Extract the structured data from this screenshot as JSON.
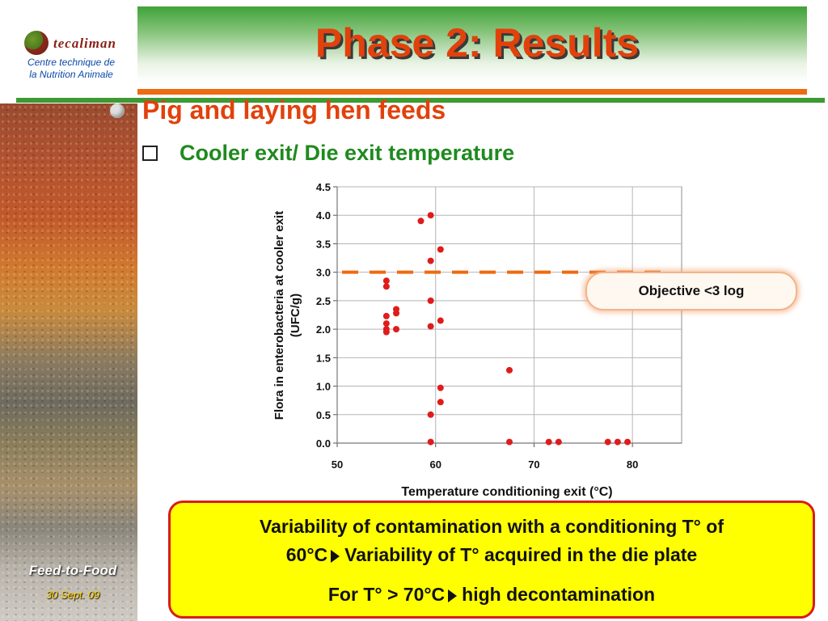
{
  "header": {
    "title": "Phase 2: Results",
    "logo_word": "tecaliman",
    "logo_sub_line1": "Centre technique de",
    "logo_sub_line2": "la Nutrition Animale"
  },
  "content": {
    "heading1": "Pig and laying hen feeds",
    "heading2": "Cooler exit/ Die exit temperature",
    "objective": "Objective <3 log",
    "note_line1": "Variability of contamination with a conditioning T° of",
    "note_line2a": "60°C",
    "note_line2b": "Variability of T° acquired in the die plate",
    "note_line3a": "For T°  > 70°C",
    "note_line3b": "high decontamination"
  },
  "footer": {
    "title": "Feed-to-Food",
    "date": "30 Sept. 09"
  },
  "colors": {
    "accent": "#e2410c",
    "green": "#1f8a1f",
    "point": "#e01b1b",
    "objective_line": "#f06a10"
  },
  "chart_data": {
    "type": "scatter",
    "title": "",
    "xlabel": "Temperature conditioning exit (°C)",
    "ylabel_line1": "Flora in enterobacteria at cooler exit",
    "ylabel_line2": "(UFC/g)",
    "xlim": [
      50,
      85
    ],
    "ylim": [
      0,
      4.5
    ],
    "xticks": [
      50,
      60,
      70,
      80
    ],
    "yticks": [
      "0.0",
      "0.5",
      "1.0",
      "1.5",
      "2.0",
      "2.5",
      "3.0",
      "3.5",
      "4.0",
      "4.5"
    ],
    "grid": true,
    "objective_threshold": 3.0,
    "points": [
      {
        "x": 58.5,
        "y": 3.9
      },
      {
        "x": 59.5,
        "y": 4.0
      },
      {
        "x": 60.5,
        "y": 3.4
      },
      {
        "x": 59.5,
        "y": 3.2
      },
      {
        "x": 55.0,
        "y": 2.85
      },
      {
        "x": 55.0,
        "y": 2.75
      },
      {
        "x": 59.5,
        "y": 2.5
      },
      {
        "x": 56.0,
        "y": 2.35
      },
      {
        "x": 56.0,
        "y": 2.28
      },
      {
        "x": 55.0,
        "y": 2.23
      },
      {
        "x": 60.5,
        "y": 2.15
      },
      {
        "x": 55.0,
        "y": 2.1
      },
      {
        "x": 59.5,
        "y": 2.05
      },
      {
        "x": 55.0,
        "y": 2.0
      },
      {
        "x": 56.0,
        "y": 2.0
      },
      {
        "x": 55.0,
        "y": 1.95
      },
      {
        "x": 67.5,
        "y": 1.28
      },
      {
        "x": 60.5,
        "y": 0.97
      },
      {
        "x": 60.5,
        "y": 0.72
      },
      {
        "x": 59.5,
        "y": 0.5
      },
      {
        "x": 59.5,
        "y": 0.02
      },
      {
        "x": 67.5,
        "y": 0.02
      },
      {
        "x": 71.5,
        "y": 0.02
      },
      {
        "x": 72.5,
        "y": 0.02
      },
      {
        "x": 77.5,
        "y": 0.02
      },
      {
        "x": 78.5,
        "y": 0.02
      },
      {
        "x": 79.5,
        "y": 0.02
      }
    ]
  }
}
